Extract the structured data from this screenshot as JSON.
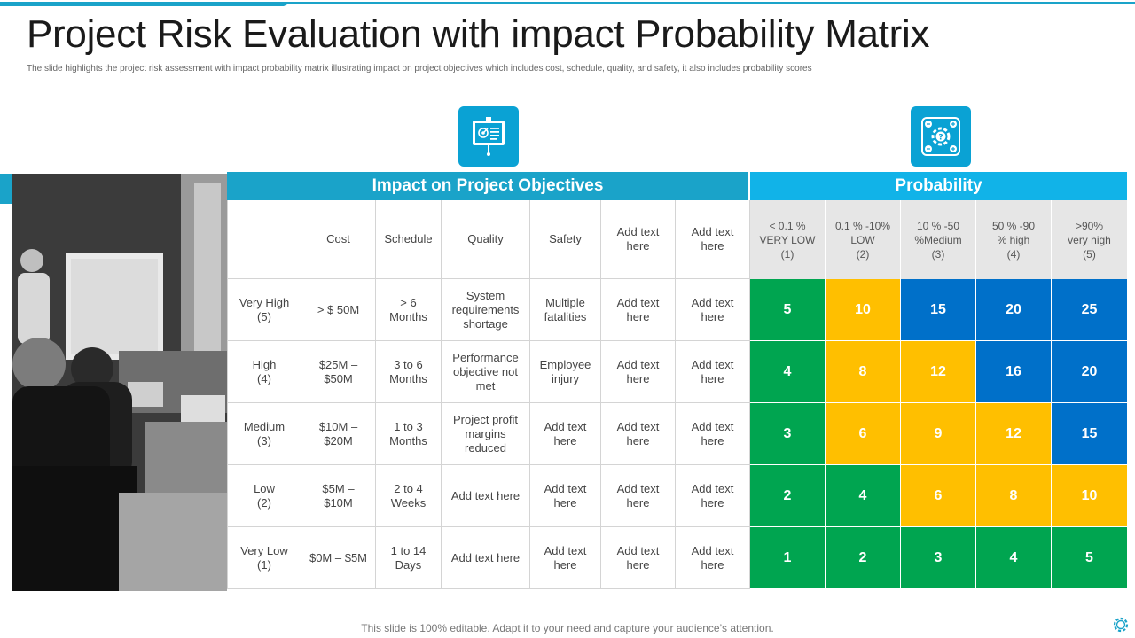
{
  "title": "Project Risk Evaluation with impact Probability Matrix",
  "subtitle": "The slide highlights the project risk assessment with impact probability matrix illustrating impact on project objectives which includes cost, schedule, quality, and safety, it also includes probability scores",
  "icons": {
    "left": "presentation-board-icon",
    "right": "risk-gear-icon"
  },
  "colors": {
    "accent": "#1aa3c9",
    "green": "#00a550",
    "yellow": "#ffbf00",
    "blue": "#0070c9"
  },
  "table": {
    "impact_header": "Impact on Project Objectives",
    "probability_header": "Probability",
    "columns": [
      "",
      "Cost",
      "Schedule",
      "Quality",
      "Safety",
      "Add text here",
      "Add text here"
    ],
    "probability_columns": [
      "< 0.1 %\nVERY LOW\n(1)",
      "0.1 % -10%\nLOW\n(2)",
      "10 % -50\n%Medium\n(3)",
      "50 % -90\n% high\n(4)",
      ">90%\nvery high\n(5)"
    ],
    "rows": [
      {
        "cells": [
          "Very High\n(5)",
          "> $ 50M",
          "> 6\nMonths",
          "System\nrequirements\nshortage",
          "Multiple\nfatalities",
          "Add text\nhere",
          "Add text\nhere"
        ],
        "scores": [
          "5",
          "10",
          "15",
          "20",
          "25"
        ],
        "levels": [
          "green",
          "yellow",
          "blue",
          "blue",
          "blue"
        ]
      },
      {
        "cells": [
          "High\n(4)",
          "$25M –\n$50M",
          "3 to 6\nMonths",
          "Performance\nobjective not\nmet",
          "Employee\ninjury",
          "Add text\nhere",
          "Add text\nhere"
        ],
        "scores": [
          "4",
          "8",
          "12",
          "16",
          "20"
        ],
        "levels": [
          "green",
          "yellow",
          "yellow",
          "blue",
          "blue"
        ]
      },
      {
        "cells": [
          "Medium\n(3)",
          "$10M –\n$20M",
          "1 to 3\nMonths",
          "Project profit\nmargins\nreduced",
          "Add text\nhere",
          "Add text\nhere",
          "Add text\nhere"
        ],
        "scores": [
          "3",
          "6",
          "9",
          "12",
          "15"
        ],
        "levels": [
          "green",
          "yellow",
          "yellow",
          "yellow",
          "blue"
        ]
      },
      {
        "cells": [
          "Low\n(2)",
          "$5M –\n$10M",
          "2 to 4\nWeeks",
          "Add text here",
          "Add text\nhere",
          "Add text\nhere",
          "Add text\nhere"
        ],
        "scores": [
          "2",
          "4",
          "6",
          "8",
          "10"
        ],
        "levels": [
          "green",
          "green",
          "yellow",
          "yellow",
          "yellow"
        ]
      },
      {
        "cells": [
          "Very Low\n(1)",
          "$0M – $5M",
          "1 to 14\nDays",
          "Add text here",
          "Add text\nhere",
          "Add text\nhere",
          "Add text\nhere"
        ],
        "scores": [
          "1",
          "2",
          "3",
          "4",
          "5"
        ],
        "levels": [
          "green",
          "green",
          "green",
          "green",
          "green"
        ]
      }
    ]
  },
  "footer": "This slide is 100% editable. Adapt it to your need and capture your audience’s attention."
}
